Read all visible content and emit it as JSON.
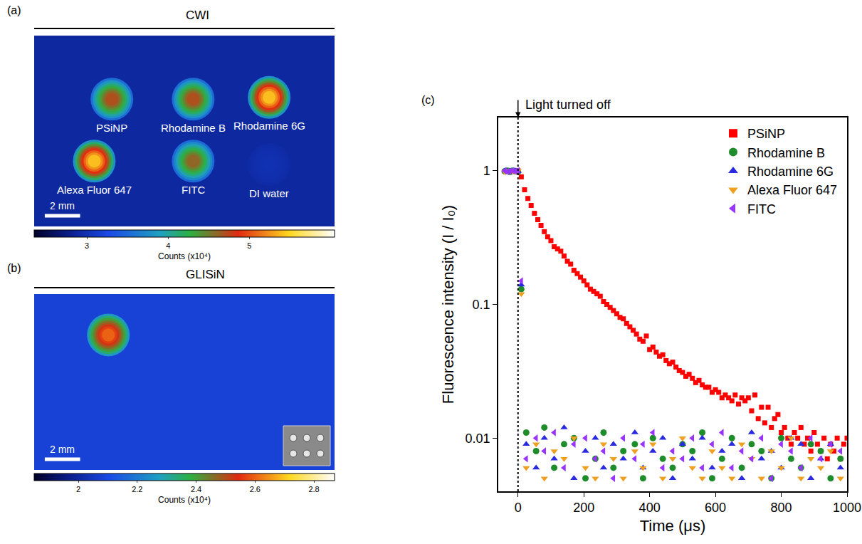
{
  "chart_data": [
    {
      "type": "image",
      "panel": "(a)",
      "title": "CWI",
      "xlim": [
        0,
        17
      ],
      "ylim": [
        0,
        10.8
      ],
      "tick_labels": false,
      "background": 2.9,
      "spots": [
        {
          "label": "PSiNP",
          "x": 4.4,
          "y": 7.2,
          "value": 4.7
        },
        {
          "label": "Rhodamine B",
          "x": 9.0,
          "y": 7.2,
          "value": 4.7
        },
        {
          "label": "Rhodamine 6G",
          "x": 13.3,
          "y": 7.3,
          "value": 5.4
        },
        {
          "label": "Alexa Fluor 647",
          "x": 3.4,
          "y": 3.7,
          "value": 5.4
        },
        {
          "label": "FITC",
          "x": 9.0,
          "y": 3.7,
          "value": 4.6
        },
        {
          "label": "DI water",
          "x": 13.3,
          "y": 3.5,
          "value": 3.0
        }
      ],
      "colorbar": {
        "range": [
          2.35,
          6.05
        ],
        "ticks": [
          3,
          4,
          5
        ],
        "label": "Counts (x10⁴)"
      },
      "scale_bar": {
        "length": 2,
        "label": "2 mm"
      }
    },
    {
      "type": "image",
      "panel": "(b)",
      "title": "GLISiN",
      "xlim": [
        0,
        17
      ],
      "ylim": [
        0,
        9.9
      ],
      "tick_labels": false,
      "background": 2.08,
      "spots": [
        {
          "x": 4.2,
          "y": 7.6,
          "value": 2.6
        }
      ],
      "colorbar": {
        "range": [
          1.85,
          2.87
        ],
        "ticks": [
          2,
          2.2,
          2.4,
          2.6,
          2.8
        ],
        "label": "Counts (x10⁴)"
      },
      "scale_bar": {
        "length": 2,
        "label": "2 mm"
      }
    },
    {
      "type": "scatter",
      "panel": "(c)",
      "xlabel": "Time (μs)",
      "ylabel": "Fluorescence intensity (I / I₀)",
      "xlim": [
        -60,
        1000
      ],
      "ylim": [
        0.004,
        2.5
      ],
      "xticks": [
        0,
        200,
        400,
        600,
        800,
        1000
      ],
      "yticks": [
        0.01,
        0.1,
        1
      ],
      "log": "y",
      "grid": false,
      "legend": "upper right",
      "annotations": [
        {
          "x": 0,
          "text": "Light turned off"
        }
      ],
      "series": [
        {
          "name": "PSiNP",
          "color": "#ff0000",
          "marker": "square",
          "x": [
            -40,
            -32,
            -24,
            -16,
            -8,
            0,
            10,
            20,
            30,
            40,
            50,
            60,
            70,
            80,
            90,
            100,
            110,
            120,
            130,
            140,
            150,
            160,
            170,
            180,
            190,
            200,
            210,
            220,
            230,
            240,
            250,
            260,
            270,
            280,
            290,
            300,
            310,
            320,
            330,
            340,
            350,
            360,
            370,
            380,
            390,
            400,
            410,
            420,
            430,
            440,
            450,
            460,
            470,
            480,
            490,
            500,
            510,
            520,
            530,
            540,
            550,
            560,
            570,
            580,
            590,
            600,
            610,
            620,
            630,
            640,
            650,
            660,
            670,
            680,
            690,
            700,
            710,
            720,
            730,
            740,
            750,
            760,
            770,
            780,
            790,
            800,
            810,
            820,
            830,
            840,
            850,
            860,
            870,
            880,
            890,
            900,
            910,
            920,
            930,
            940,
            950,
            960,
            970,
            980,
            990,
            1000
          ],
          "values": [
            0.99,
            1.0,
            0.98,
            1.0,
            0.99,
            1.0,
            0.9,
            0.72,
            0.62,
            0.55,
            0.48,
            0.43,
            0.39,
            0.35,
            0.32,
            0.3,
            0.27,
            0.26,
            0.25,
            0.23,
            0.21,
            0.2,
            0.18,
            0.17,
            0.16,
            0.15,
            0.14,
            0.13,
            0.125,
            0.12,
            0.115,
            0.105,
            0.1,
            0.095,
            0.09,
            0.085,
            0.08,
            0.078,
            0.072,
            0.068,
            0.064,
            0.06,
            0.055,
            0.053,
            0.058,
            0.046,
            0.048,
            0.044,
            0.041,
            0.042,
            0.038,
            0.036,
            0.037,
            0.034,
            0.032,
            0.031,
            0.029,
            0.03,
            0.028,
            0.026,
            0.027,
            0.025,
            0.024,
            0.024,
            0.022,
            0.023,
            0.022,
            0.02,
            0.021,
            0.02,
            0.019,
            0.021,
            0.018,
            0.02,
            0.019,
            0.02,
            0.016,
            0.021,
            0.014,
            0.017,
            0.013,
            0.017,
            0.012,
            0.014,
            0.015,
            0.011,
            0.012,
            0.01,
            0.009,
            0.011,
            0.01,
            0.012,
            0.009,
            0.01,
            0.008,
            0.011,
            0.009,
            0.008,
            0.01,
            0.007,
            0.009,
            0.008,
            0.01,
            0.007,
            0.009,
            0.01
          ]
        },
        {
          "name": "Rhodamine B",
          "color": "#1e8c2a",
          "marker": "circle",
          "x": [
            -40,
            -32,
            -24,
            -16,
            -8,
            0,
            10,
            25,
            55,
            80,
            110,
            140,
            170,
            205,
            235,
            260,
            290,
            320,
            355,
            380,
            410,
            440,
            470,
            500,
            530,
            560,
            590,
            620,
            650,
            680,
            710,
            740,
            770,
            800,
            830,
            860,
            890,
            920,
            950,
            980
          ],
          "values": [
            0.99,
            1.0,
            0.98,
            1.0,
            0.99,
            0.98,
            0.13,
            0.011,
            0.008,
            0.012,
            0.006,
            0.009,
            0.01,
            0.005,
            0.007,
            0.011,
            0.006,
            0.008,
            0.009,
            0.005,
            0.01,
            0.007,
            0.006,
            0.009,
            0.008,
            0.011,
            0.005,
            0.007,
            0.01,
            0.006,
            0.009,
            0.008,
            0.005,
            0.01,
            0.007,
            0.006,
            0.009,
            0.008,
            0.005,
            0.007
          ]
        },
        {
          "name": "Rhodamine 6G",
          "color": "#2a2ae0",
          "marker": "triangle-up",
          "x": [
            -40,
            -32,
            -24,
            -16,
            -8,
            0,
            10,
            25,
            55,
            80,
            110,
            140,
            170,
            205,
            235,
            260,
            290,
            320,
            355,
            380,
            410,
            440,
            470,
            500,
            530,
            560,
            590,
            620,
            650,
            680,
            710,
            740,
            770,
            800,
            830,
            860,
            890,
            920,
            950,
            980
          ],
          "values": [
            1.0,
            0.99,
            1.0,
            0.98,
            1.0,
            0.99,
            0.14,
            0.009,
            0.006,
            0.01,
            0.007,
            0.012,
            0.005,
            0.008,
            0.01,
            0.006,
            0.009,
            0.007,
            0.011,
            0.006,
            0.008,
            0.01,
            0.005,
            0.009,
            0.007,
            0.01,
            0.006,
            0.008,
            0.009,
            0.005,
            0.011,
            0.007,
            0.008,
            0.006,
            0.01,
            0.009,
            0.005,
            0.007,
            0.009,
            0.006
          ]
        },
        {
          "name": "Alexa Fluor 647",
          "color": "#f0a020",
          "marker": "triangle-down",
          "x": [
            -40,
            -32,
            -24,
            -16,
            -8,
            0,
            10,
            25,
            55,
            80,
            110,
            140,
            170,
            205,
            235,
            260,
            290,
            320,
            355,
            380,
            410,
            440,
            470,
            500,
            530,
            560,
            590,
            620,
            650,
            680,
            710,
            740,
            770,
            800,
            830,
            860,
            890,
            920,
            950,
            980
          ],
          "values": [
            0.98,
            0.99,
            1.0,
            0.99,
            0.98,
            1.0,
            0.12,
            0.006,
            0.009,
            0.005,
            0.008,
            0.007,
            0.01,
            0.006,
            0.005,
            0.009,
            0.007,
            0.005,
            0.008,
            0.006,
            0.009,
            0.005,
            0.007,
            0.01,
            0.006,
            0.005,
            0.008,
            0.006,
            0.005,
            0.009,
            0.007,
            0.005,
            0.008,
            0.006,
            0.01,
            0.005,
            0.007,
            0.006,
            0.008,
            0.005
          ]
        },
        {
          "name": "FITC",
          "color": "#9933ff",
          "marker": "triangle-left",
          "x": [
            -40,
            -32,
            -24,
            -16,
            -8,
            0,
            10,
            25,
            55,
            80,
            110,
            140,
            170,
            205,
            235,
            260,
            290,
            320,
            355,
            380,
            410,
            440,
            470,
            500,
            530,
            560,
            590,
            620,
            650,
            680,
            710,
            740,
            770,
            800,
            830,
            860,
            890,
            920,
            950,
            980
          ],
          "values": [
            1.0,
            0.98,
            0.99,
            1.0,
            0.99,
            1.0,
            0.15,
            0.007,
            0.01,
            0.008,
            0.011,
            0.006,
            0.009,
            0.01,
            0.007,
            0.008,
            0.005,
            0.01,
            0.007,
            0.009,
            0.011,
            0.006,
            0.008,
            0.007,
            0.01,
            0.006,
            0.009,
            0.011,
            0.006,
            0.008,
            0.007,
            0.01,
            0.005,
            0.009,
            0.008,
            0.006,
            0.01,
            0.007,
            0.009,
            0.008
          ]
        }
      ]
    }
  ]
}
